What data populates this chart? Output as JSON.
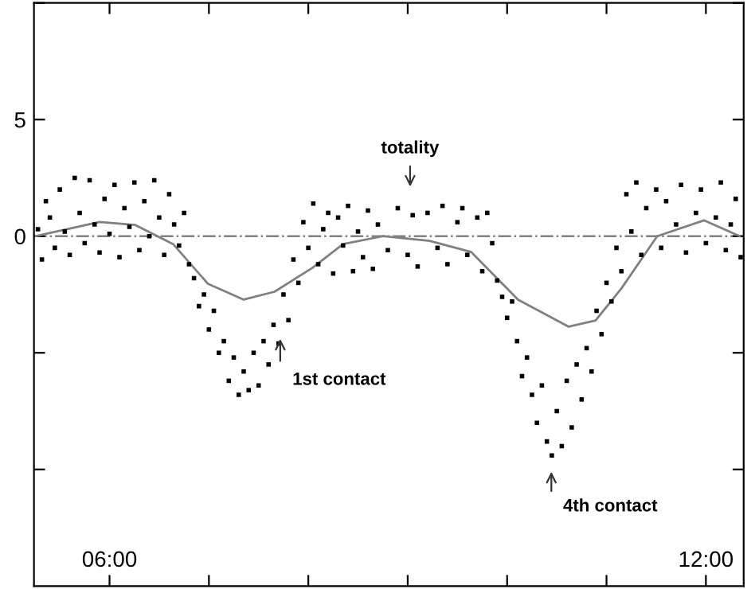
{
  "chart_data": {
    "type": "scatter",
    "xlim": [
      5.24,
      12.38
    ],
    "ylim": [
      -15,
      10
    ],
    "xticks": [
      {
        "value": 6,
        "label": "06:00"
      },
      {
        "value": 7,
        "label": null
      },
      {
        "value": 8,
        "label": null
      },
      {
        "value": 9,
        "label": null
      },
      {
        "value": 10,
        "label": null
      },
      {
        "value": 11,
        "label": null
      },
      {
        "value": 12,
        "label": "12:00"
      }
    ],
    "yticks": [
      {
        "value": 10,
        "label": null
      },
      5,
      0,
      {
        "value": -5,
        "label": null
      },
      {
        "value": -10,
        "label": null
      }
    ],
    "grid": false,
    "legend": false,
    "series": [
      {
        "type": "scatter",
        "color": "#000000",
        "marker": "square",
        "x": [
          5.28,
          5.32,
          5.36,
          5.4,
          5.45,
          5.5,
          5.55,
          5.6,
          5.65,
          5.7,
          5.75,
          5.8,
          5.85,
          5.9,
          5.95,
          6.0,
          6.05,
          6.1,
          6.15,
          6.2,
          6.25,
          6.3,
          6.35,
          6.4,
          6.45,
          6.5,
          6.55,
          6.6,
          6.65,
          6.7,
          6.75,
          6.8,
          6.85,
          6.9,
          6.95,
          7.0,
          7.05,
          7.1,
          7.15,
          7.2,
          7.25,
          7.3,
          7.35,
          7.4,
          7.45,
          7.5,
          7.55,
          7.6,
          7.65,
          7.7,
          7.75,
          7.8,
          7.85,
          7.9,
          7.95,
          8.0,
          8.05,
          8.1,
          8.15,
          8.2,
          8.25,
          8.3,
          8.35,
          8.4,
          8.45,
          8.5,
          8.55,
          8.6,
          8.65,
          8.7,
          8.8,
          8.9,
          9.0,
          9.05,
          9.1,
          9.2,
          9.3,
          9.35,
          9.4,
          9.5,
          9.55,
          9.6,
          9.7,
          9.75,
          9.8,
          9.85,
          9.9,
          9.95,
          10.0,
          10.05,
          10.1,
          10.15,
          10.2,
          10.25,
          10.3,
          10.35,
          10.4,
          10.45,
          10.5,
          10.55,
          10.6,
          10.65,
          10.7,
          10.75,
          10.8,
          10.85,
          10.9,
          10.95,
          11.0,
          11.05,
          11.1,
          11.15,
          11.2,
          11.25,
          11.3,
          11.35,
          11.4,
          11.5,
          11.55,
          11.6,
          11.7,
          11.75,
          11.8,
          11.9,
          11.95,
          12.0,
          12.1,
          12.15,
          12.2,
          12.25,
          12.3,
          12.35
        ],
        "values": [
          0.3,
          -1.0,
          1.5,
          0.8,
          -0.5,
          2.0,
          0.2,
          -0.8,
          2.5,
          1.0,
          -0.3,
          2.4,
          0.5,
          -0.7,
          1.6,
          0.1,
          2.2,
          -0.9,
          1.2,
          0.4,
          2.3,
          -0.6,
          1.5,
          0.0,
          2.4,
          0.8,
          -0.8,
          1.8,
          0.5,
          -0.4,
          1.0,
          -1.2,
          -1.8,
          -3.0,
          -2.5,
          -4.0,
          -3.2,
          -5.0,
          -4.5,
          -6.2,
          -5.2,
          -6.8,
          -5.8,
          -6.6,
          -5.0,
          -6.4,
          -4.5,
          -5.5,
          -3.8,
          -4.6,
          -2.5,
          -3.6,
          -1.0,
          -2.0,
          0.6,
          -0.5,
          1.4,
          -1.2,
          0.3,
          1.0,
          -1.6,
          0.8,
          -0.4,
          1.3,
          -1.5,
          0.2,
          -0.9,
          1.1,
          -1.4,
          0.5,
          -0.6,
          1.2,
          -0.8,
          0.9,
          -1.3,
          1.0,
          -0.5,
          1.3,
          -1.2,
          0.6,
          1.2,
          -0.8,
          0.8,
          -1.5,
          1.0,
          -0.3,
          -1.9,
          -2.6,
          -3.5,
          -2.8,
          -4.5,
          -6.0,
          -5.2,
          -6.8,
          -8.0,
          -6.4,
          -8.8,
          -9.4,
          -7.5,
          -9.0,
          -6.2,
          -8.2,
          -5.5,
          -7.0,
          -4.8,
          -5.8,
          -3.2,
          -4.2,
          -2.0,
          -2.8,
          -0.5,
          -1.5,
          1.8,
          0.2,
          2.3,
          -0.8,
          1.2,
          2.0,
          -0.5,
          1.5,
          0.5,
          2.2,
          -0.7,
          1.0,
          2.0,
          -0.3,
          0.8,
          2.3,
          -0.6,
          0.5,
          1.6,
          -0.9
        ]
      },
      {
        "type": "line",
        "color": "#808080",
        "marker": "none",
        "line_style": "solid",
        "x": [
          5.25,
          5.9,
          6.26,
          6.64,
          6.99,
          7.35,
          7.66,
          8.04,
          8.35,
          8.75,
          9.22,
          9.64,
          10.11,
          10.62,
          10.89,
          11.15,
          11.51,
          11.98,
          12.34
        ],
        "values": [
          0,
          0.61,
          0.48,
          -0.34,
          -2.04,
          -2.72,
          -2.38,
          -1.36,
          -0.34,
          0,
          -0.2,
          -0.68,
          -2.72,
          -3.88,
          -3.61,
          -2.24,
          0,
          0.68,
          0
        ]
      }
    ],
    "ref_lines": [
      {
        "axis": "y",
        "value": 0,
        "color": "#808080",
        "line_style": "dashdot"
      }
    ],
    "annotations": [
      "totality",
      "1st contact",
      "4th contact"
    ]
  }
}
